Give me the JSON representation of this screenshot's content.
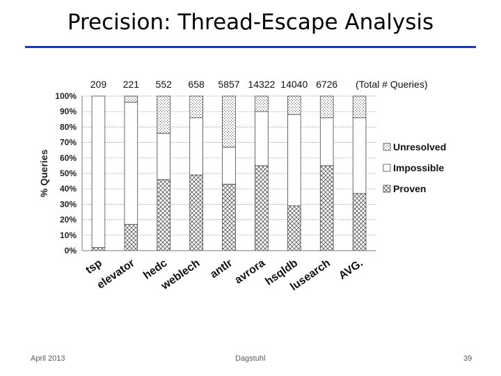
{
  "slide": {
    "title": "Precision: Thread-Escape Analysis",
    "rule_color": "#1f3aa8",
    "footer_left": "April 2013",
    "footer_center": "Dagstuhl",
    "footer_right": "39"
  },
  "chart_data": {
    "type": "bar",
    "stacked": true,
    "normalized": true,
    "ylabel": "% Queries",
    "xlabel": "",
    "ylim": [
      0,
      100
    ],
    "ytick_labels": [
      "0%",
      "10%",
      "20%",
      "30%",
      "40%",
      "50%",
      "60%",
      "70%",
      "80%",
      "90%",
      "100%"
    ],
    "grid": true,
    "legend_position": "right",
    "categories": [
      "tsp",
      "elevator",
      "hedc",
      "weblech",
      "antlr",
      "avrora",
      "hsqldb",
      "lusearch",
      "AVG."
    ],
    "top_labels": [
      "209",
      "221",
      "552",
      "658",
      "5857",
      "14322",
      "14040",
      "6726"
    ],
    "top_labels_note": "(Total # Queries)",
    "series": [
      {
        "name": "Proven",
        "values": [
          2,
          17,
          46,
          49,
          43,
          55,
          29,
          55,
          37
        ]
      },
      {
        "name": "Impossible",
        "values": [
          98,
          79,
          30,
          37,
          24,
          35,
          59,
          31,
          49
        ]
      },
      {
        "name": "Unresolved",
        "values": [
          0,
          4,
          24,
          14,
          33,
          10,
          12,
          14,
          14
        ]
      }
    ],
    "legend_order": [
      "Unresolved",
      "Impossible",
      "Proven"
    ]
  }
}
